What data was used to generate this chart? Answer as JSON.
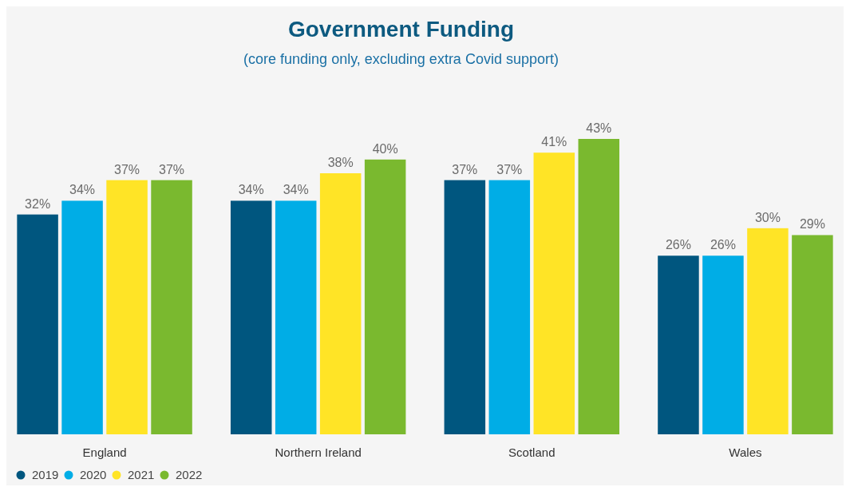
{
  "chart_data": {
    "type": "bar",
    "title": "Government Funding",
    "subtitle": "(core funding only, excluding extra Covid support)",
    "categories": [
      "England",
      "Northern Ireland",
      "Scotland",
      "Wales"
    ],
    "series": [
      {
        "name": "2019",
        "color": "#00567f",
        "values": [
          32,
          34,
          37,
          26
        ],
        "value_labels": [
          "32%",
          "34%",
          "37%",
          "26%"
        ]
      },
      {
        "name": "2020",
        "color": "#00ade6",
        "values": [
          34,
          34,
          37,
          26
        ],
        "value_labels": [
          "34%",
          "34%",
          "37%",
          "26%"
        ]
      },
      {
        "name": "2021",
        "color": "#ffe426",
        "values": [
          37,
          38,
          41,
          30
        ],
        "value_labels": [
          "37%",
          "38%",
          "41%",
          "30%"
        ]
      },
      {
        "name": "2022",
        "color": "#7ab92f",
        "values": [
          37,
          40,
          43,
          29
        ],
        "value_labels": [
          "37%",
          "40%",
          "43%",
          "29%"
        ]
      }
    ],
    "legend": "bottom left"
  }
}
